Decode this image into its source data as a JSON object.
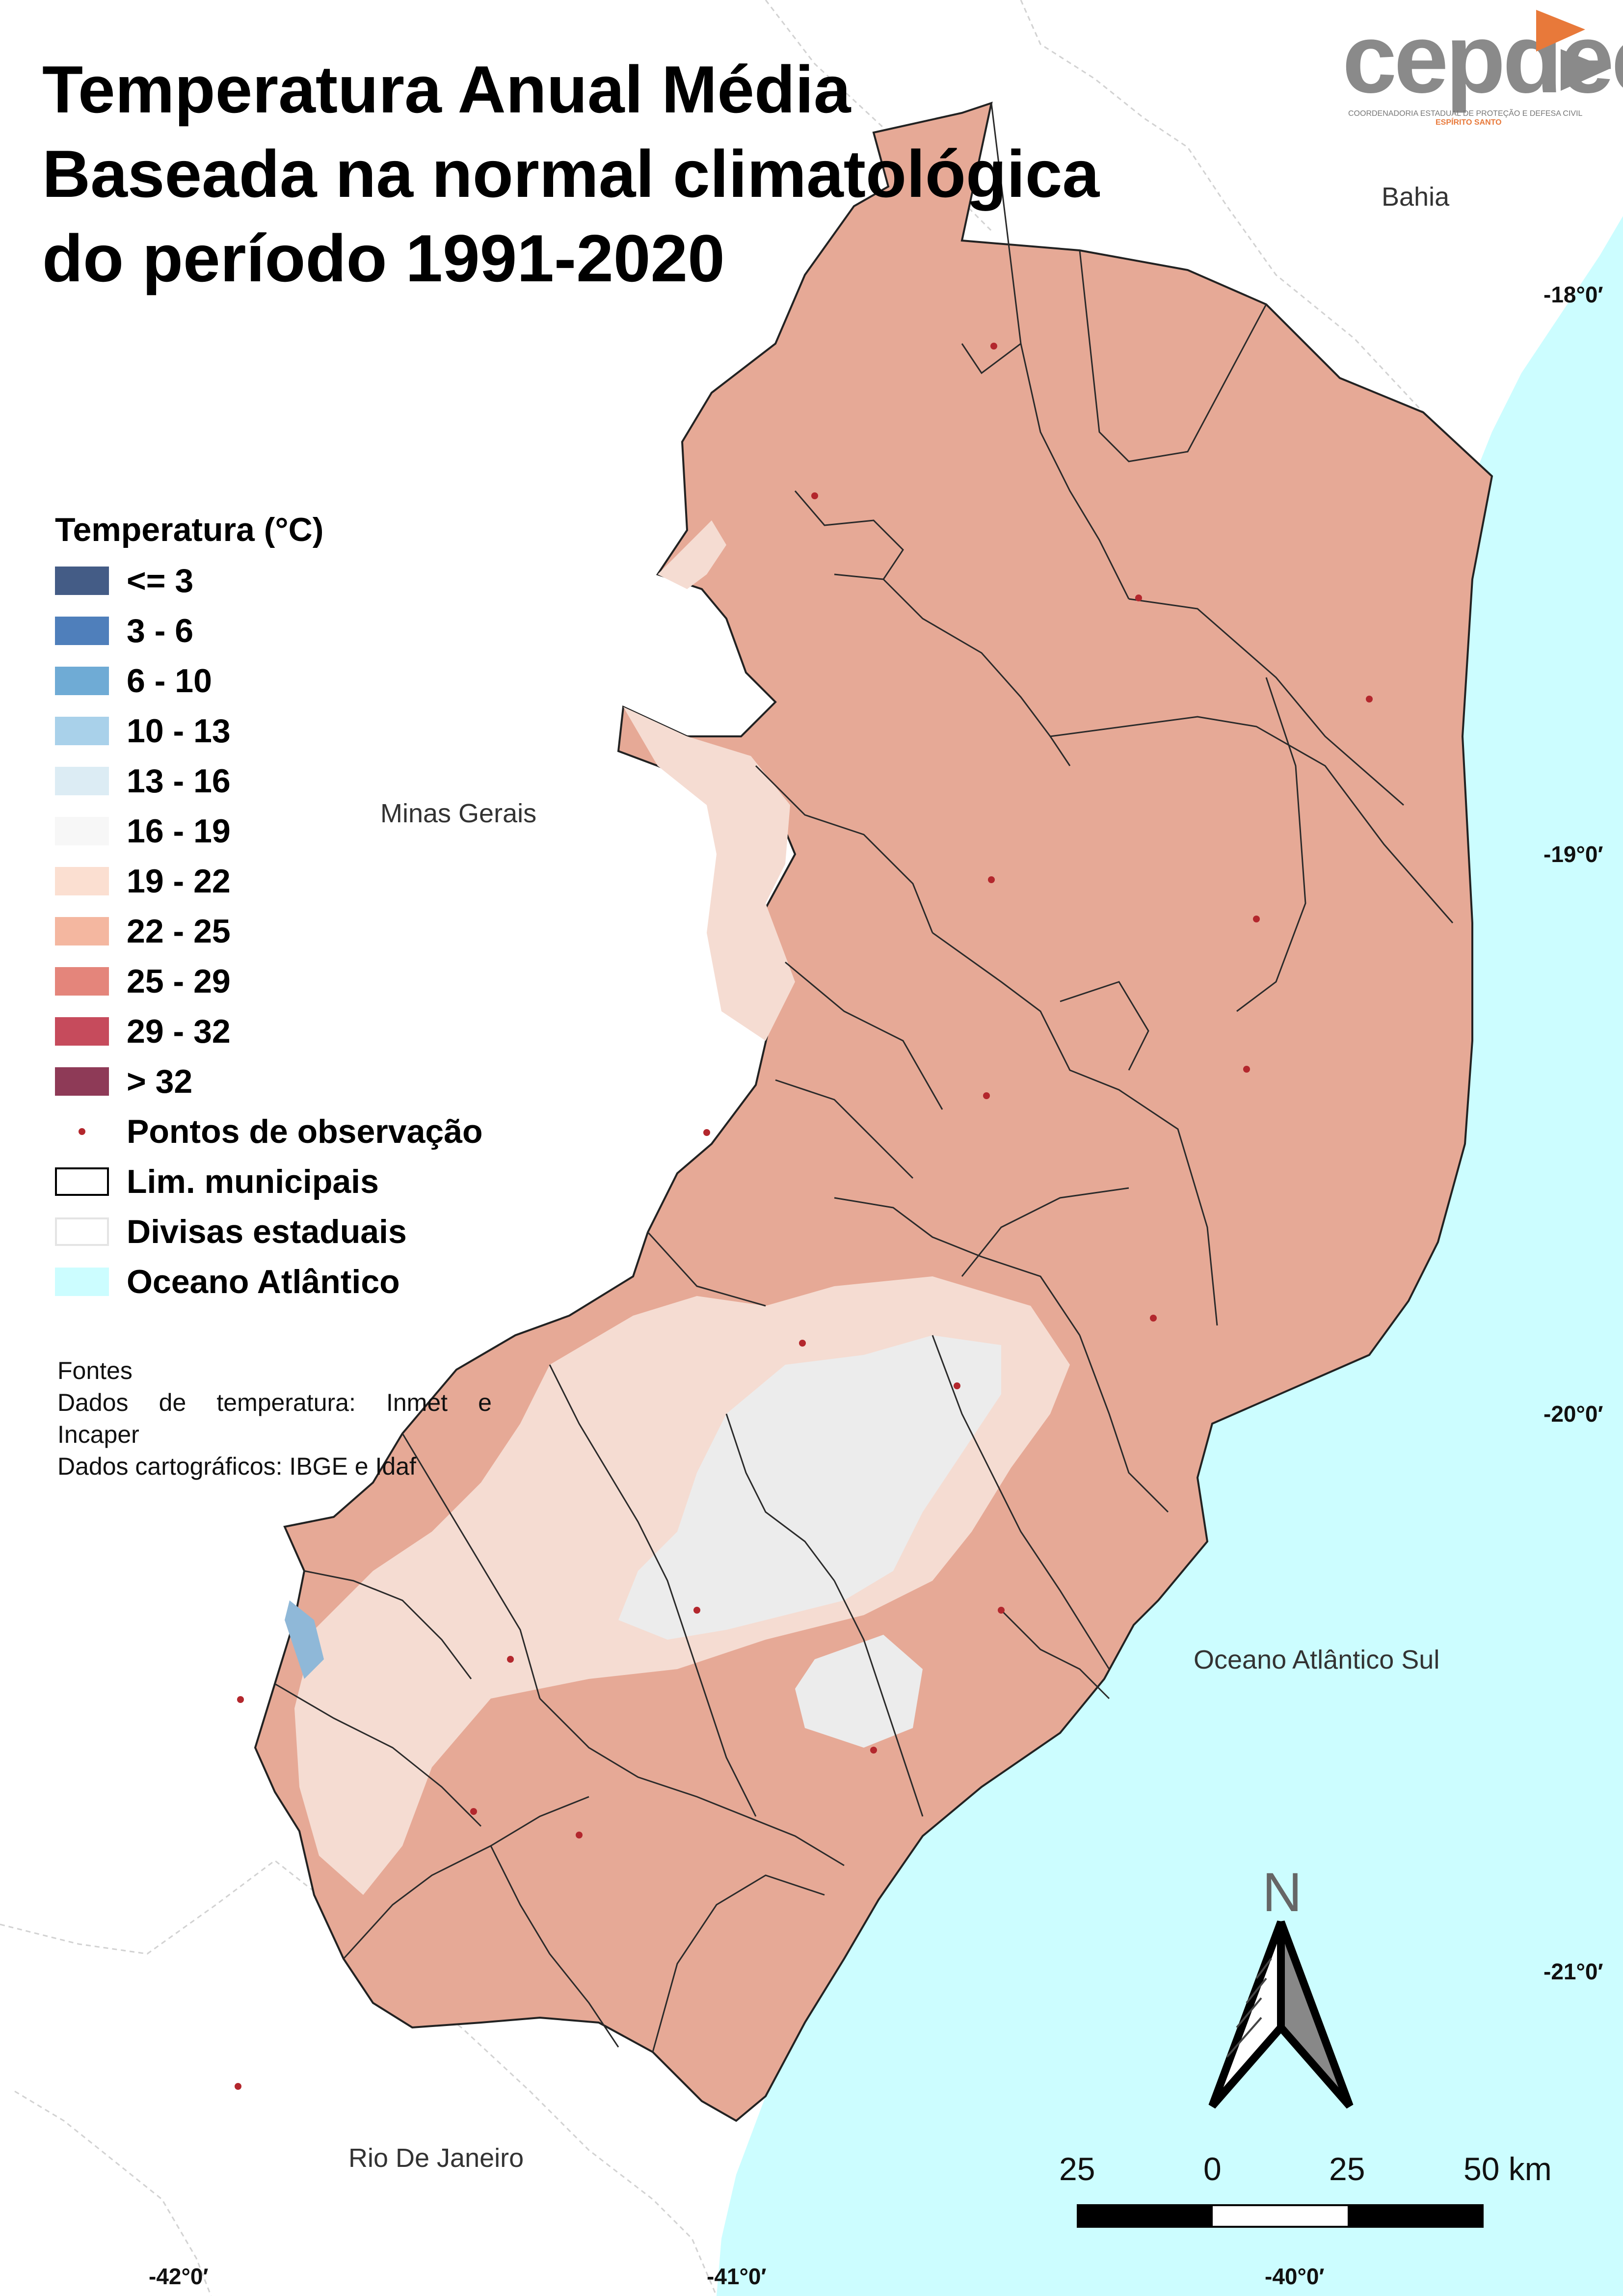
{
  "title": {
    "line1": "Temperatura Anual Média",
    "line2": "Baseada na normal climatológica",
    "line3": "do período 1991-2020"
  },
  "logo": {
    "name": "cepdec",
    "subtitle": "COORDENADORIA ESTADUAL DE PROTEÇÃO E DEFESA CIVIL",
    "state": "ESPÍRITO SANTO"
  },
  "places": {
    "bahia": "Bahia",
    "minas": "Minas Gerais",
    "rio": "Rio De Janeiro",
    "ocean": "Oceano Atlântico Sul"
  },
  "latitudes": [
    "-18°0′",
    "-19°0′",
    "-20°0′",
    "-21°0′"
  ],
  "longitudes": [
    "-42°0′",
    "-41°0′",
    "-40°0′"
  ],
  "legend": {
    "title": "Temperatura (°C)",
    "classes": [
      {
        "label": "<= 3",
        "color": "#445c86"
      },
      {
        "label": "3 - 6",
        "color": "#4f7fbb"
      },
      {
        "label": "6 - 10",
        "color": "#6fabd5"
      },
      {
        "label": "10 - 13",
        "color": "#a9d1ea"
      },
      {
        "label": "13 - 16",
        "color": "#dcecf4"
      },
      {
        "label": "16 - 19",
        "color": "#f7f7f7"
      },
      {
        "label": "19 - 22",
        "color": "#fbdfd1"
      },
      {
        "label": "22 - 25",
        "color": "#f4b7a0"
      },
      {
        "label": "25 - 29",
        "color": "#e4857b"
      },
      {
        "label": "29 - 32",
        "color": "#c64b5c"
      },
      {
        "label": "> 32",
        "color": "#8e3a57"
      }
    ],
    "points": "Pontos de observação",
    "municipal": "Lim. municipais",
    "state_borders": "Divisas estaduais",
    "ocean": "Oceano Atlântico"
  },
  "colors": {
    "ocean": "#ccfdff",
    "land_warm": "#e6a996",
    "land_mild": "#f5dcd2",
    "land_cool": "#ececec",
    "land_cold": "#8fb8d8",
    "obs_point": "#b3272d"
  },
  "sources": {
    "heading": "Fontes",
    "temp_words": [
      "Dados",
      "de",
      "temperatura:",
      "Inmet",
      "e"
    ],
    "temp_line2": "Incaper",
    "cartographic": "Dados cartográficos: IBGE e Idaf"
  },
  "north": "N",
  "scale": {
    "labels": [
      "25",
      "0",
      "25",
      "50 km"
    ]
  }
}
